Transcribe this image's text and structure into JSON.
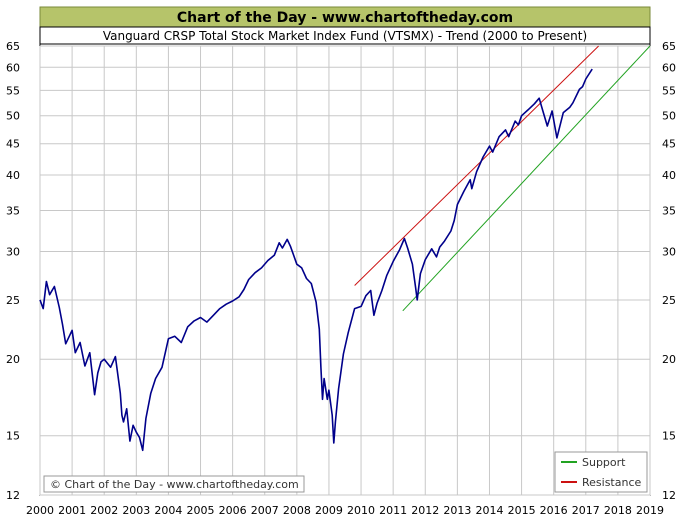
{
  "header": {
    "banner": "Chart of the Day - www.chartoftheday.com",
    "subtitle": "Vanguard  CRSP Total Stock Market Index Fund (VTSMX) - Trend (2000 to Present)"
  },
  "copyright": "© Chart of the Day - www.chartoftheday.com",
  "colors": {
    "banner_bg": "#b6c46a",
    "price_line": "#00008b",
    "support_line": "#22a322",
    "resistance_line": "#cc1111",
    "grid": "#c8c8c8"
  },
  "chart_data": {
    "type": "line",
    "title": "Vanguard  CRSP Total Stock Market Index Fund (VTSMX) - Trend (2000 to Present)",
    "xlabel": "",
    "ylabel": "",
    "log_scale_y": true,
    "xlim": [
      2000,
      2019
    ],
    "ylim": [
      12,
      65
    ],
    "x_ticks": [
      "2000",
      "2001",
      "2002",
      "2003",
      "2004",
      "2005",
      "2006",
      "2007",
      "2008",
      "2009",
      "2010",
      "2011",
      "2012",
      "2013",
      "2014",
      "2015",
      "2016",
      "2017",
      "2018",
      "2019"
    ],
    "y_ticks": [
      12,
      15,
      20,
      25,
      30,
      35,
      40,
      45,
      50,
      55,
      60,
      65
    ],
    "grid": true,
    "legend": {
      "placement": "bottom-right",
      "entries": [
        "Support",
        "Resistance"
      ]
    },
    "series": [
      {
        "name": "",
        "x": [
          2000.0,
          2000.1,
          2000.2,
          2000.3,
          2000.45,
          2000.6,
          2000.7,
          2000.8,
          2001.0,
          2001.1,
          2001.25,
          2001.4,
          2001.55,
          2001.7,
          2001.8,
          2001.9,
          2002.0,
          2002.2,
          2002.35,
          2002.5,
          2002.55,
          2002.6,
          2002.7,
          2002.8,
          2002.9,
          2003.0,
          2003.1,
          2003.2,
          2003.3,
          2003.45,
          2003.6,
          2003.8,
          2004.0,
          2004.2,
          2004.4,
          2004.6,
          2004.8,
          2005.0,
          2005.2,
          2005.4,
          2005.6,
          2005.8,
          2006.0,
          2006.2,
          2006.35,
          2006.5,
          2006.7,
          2006.9,
          2007.1,
          2007.3,
          2007.45,
          2007.55,
          2007.7,
          2007.8,
          2007.9,
          2008.0,
          2008.15,
          2008.3,
          2008.45,
          2008.6,
          2008.7,
          2008.75,
          2008.8,
          2008.85,
          2008.95,
          2009.0,
          2009.1,
          2009.15,
          2009.2,
          2009.3,
          2009.45,
          2009.6,
          2009.8,
          2010.0,
          2010.15,
          2010.3,
          2010.4,
          2010.5,
          2010.65,
          2010.8,
          2011.0,
          2011.2,
          2011.35,
          2011.45,
          2011.6,
          2011.7,
          2011.75,
          2011.85,
          2012.0,
          2012.2,
          2012.35,
          2012.45,
          2012.6,
          2012.8,
          2012.9,
          2013.0,
          2013.2,
          2013.4,
          2013.45,
          2013.6,
          2013.8,
          2014.0,
          2014.1,
          2014.3,
          2014.5,
          2014.6,
          2014.8,
          2014.9,
          2015.0,
          2015.2,
          2015.4,
          2015.55,
          2015.65,
          2015.8,
          2015.95,
          2016.1,
          2016.3,
          2016.5,
          2016.6,
          2016.8,
          2016.9,
          2017.0,
          2017.2
        ],
        "y": [
          25.0,
          24.2,
          26.8,
          25.5,
          26.3,
          24.3,
          22.8,
          21.2,
          22.3,
          20.5,
          21.3,
          19.5,
          20.5,
          17.5,
          19.0,
          19.8,
          20.0,
          19.4,
          20.2,
          17.6,
          16.2,
          15.8,
          16.6,
          14.7,
          15.6,
          15.2,
          14.9,
          14.2,
          16.0,
          17.6,
          18.6,
          19.4,
          21.6,
          21.8,
          21.3,
          22.6,
          23.1,
          23.4,
          23.0,
          23.6,
          24.2,
          24.6,
          24.9,
          25.3,
          26.0,
          27.0,
          27.7,
          28.2,
          29.0,
          29.6,
          31.0,
          30.4,
          31.4,
          30.6,
          29.6,
          28.6,
          28.2,
          27.1,
          26.6,
          24.8,
          22.4,
          19.4,
          17.2,
          18.6,
          17.2,
          17.8,
          16.2,
          14.6,
          15.8,
          17.9,
          20.4,
          22.1,
          24.2,
          24.4,
          25.4,
          25.9,
          23.6,
          24.7,
          25.9,
          27.4,
          28.9,
          30.2,
          31.5,
          30.4,
          28.6,
          26.2,
          25.0,
          27.6,
          29.1,
          30.3,
          29.4,
          30.5,
          31.2,
          32.4,
          33.7,
          35.8,
          37.6,
          39.3,
          38.0,
          40.5,
          42.8,
          44.6,
          43.6,
          46.2,
          47.4,
          46.2,
          49.0,
          48.3,
          50.0,
          51.1,
          52.3,
          53.4,
          51.2,
          48.1,
          50.9,
          46.0,
          50.6,
          51.6,
          52.5,
          55.2,
          55.8,
          57.4,
          59.6
        ]
      }
    ],
    "trend_lines": [
      {
        "name": "Support",
        "from": {
          "x": 2011.3,
          "y": 24.0
        },
        "to": {
          "x": 2019.0,
          "y": 65.0
        }
      },
      {
        "name": "Resistance",
        "from": {
          "x": 2009.8,
          "y": 26.4
        },
        "to": {
          "x": 2017.4,
          "y": 65.0
        }
      }
    ]
  }
}
